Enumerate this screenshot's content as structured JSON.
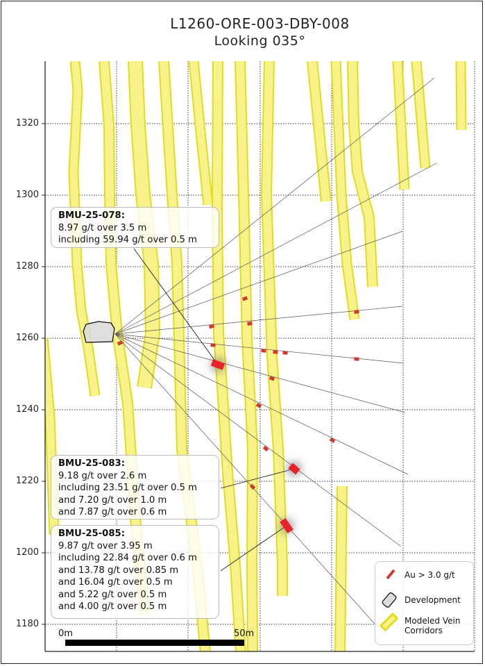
{
  "header": {
    "title": "L1260-ORE-003-DBY-008",
    "subtitle": "Looking 035°"
  },
  "y_axis": {
    "ticks": [
      "1320",
      "1300",
      "1280",
      "1260",
      "1240",
      "1220",
      "1200",
      "1180"
    ]
  },
  "annotations": [
    {
      "hole": "BMU-25-078:",
      "lines": [
        "8.97 g/t over 3.5 m",
        "including 59.94 g/t over 0.5 m"
      ]
    },
    {
      "hole": "BMU-25-083:",
      "lines": [
        "9.18 g/t over 2.6 m",
        "including 23.51 g/t over 0.5 m",
        "and 7.20 g/t over 1.0 m",
        "and 7.87 g/t over 0.6 m"
      ]
    },
    {
      "hole": "BMU-25-085:",
      "lines": [
        "9.87 g/t over 3.95 m",
        "including 22.84 g/t over 0.6 m",
        "and 13.78 g/t over 0.85 m",
        "and 16.04 g/t over 0.5 m",
        "and 5.22 g/t over 0.5 m",
        "and 4.00 g/t over 0.5 m"
      ]
    }
  ],
  "legend": {
    "items": [
      {
        "label": "Au > 3.0 g/t",
        "icon": "red-intercept-icon",
        "color": "#d0392b"
      },
      {
        "label": "Development",
        "icon": "development-polygon-icon",
        "color": "#dcdcdc"
      },
      {
        "label": "Modeled Vein Corridors",
        "icon": "vein-corridor-icon",
        "color": "#f4ef6e"
      }
    ]
  },
  "scale_bar": {
    "start_label": "0m",
    "end_label": "50m"
  },
  "colors": {
    "vein_fill": "#f7f38a",
    "vein_edge": "#e3dc1c",
    "intercept": "#d0392b",
    "high_grade": "#e8212a",
    "drill_trace": "#555555"
  }
}
